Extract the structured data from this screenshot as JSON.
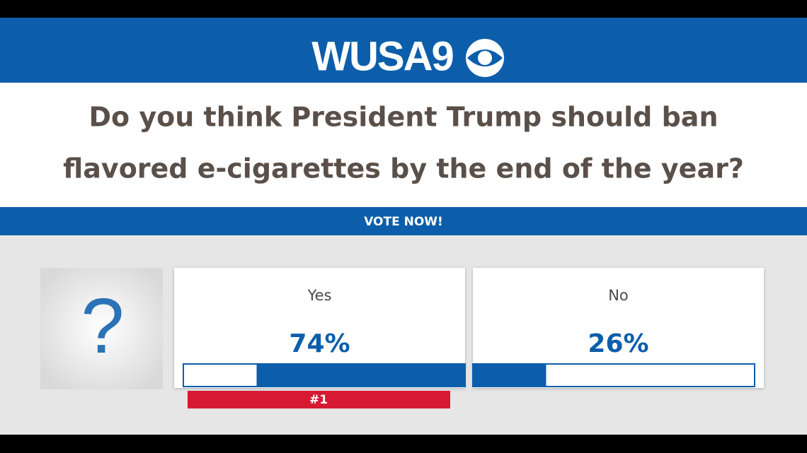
{
  "logo": "WUSA9",
  "question": [
    "Do you think President Trump should ban",
    "flavored e-cigarettes by the end of the year?"
  ],
  "vote_banner": "VOTE NOW!",
  "question_icon": "?",
  "chart_data": {
    "type": "poll",
    "categories": [
      "Yes",
      "No"
    ],
    "values": [
      74,
      26
    ],
    "value_labels": [
      "74%",
      "26%"
    ],
    "color": "#0c5eaa",
    "rank_label": "#1"
  }
}
